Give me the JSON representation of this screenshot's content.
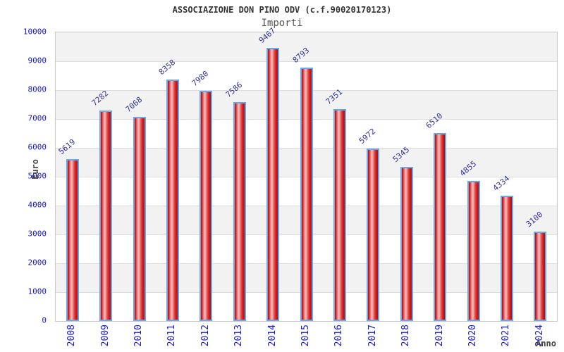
{
  "chart_data": {
    "type": "bar",
    "title": "ASSOCIAZIONE DON PINO ODV (c.f.90020170123)",
    "subtitle": "Importi",
    "xlabel": "Anno",
    "ylabel": "Euro",
    "categories": [
      "2008",
      "2009",
      "2010",
      "2011",
      "2012",
      "2013",
      "2014",
      "2015",
      "2016",
      "2017",
      "2018",
      "2019",
      "2020",
      "2021",
      "2024"
    ],
    "values": [
      5619,
      7282,
      7068,
      8358,
      7980,
      7586,
      9467,
      8793,
      7351,
      5972,
      5345,
      6510,
      4855,
      4334,
      3100
    ],
    "ylim": [
      0,
      10000
    ],
    "yticks": [
      0,
      1000,
      2000,
      3000,
      4000,
      5000,
      6000,
      7000,
      8000,
      9000,
      10000
    ],
    "grid": "horizontal",
    "background_bands": "alternating gray/white per 1000",
    "legend_position": "none",
    "colors": {
      "bar_edge": "#64aaec",
      "bar_fill_dark": "#b80d0d",
      "bar_fill_light": "#f7bcbc",
      "axis_tick_label": "#1a1acc",
      "value_label": "#333399",
      "band_gray": "#f2f2f2",
      "gridline": "#dcdcdc",
      "plot_border": "#c9c9c9",
      "title": "#333333",
      "subtitle": "#555555",
      "axis_title": "#444444"
    }
  }
}
